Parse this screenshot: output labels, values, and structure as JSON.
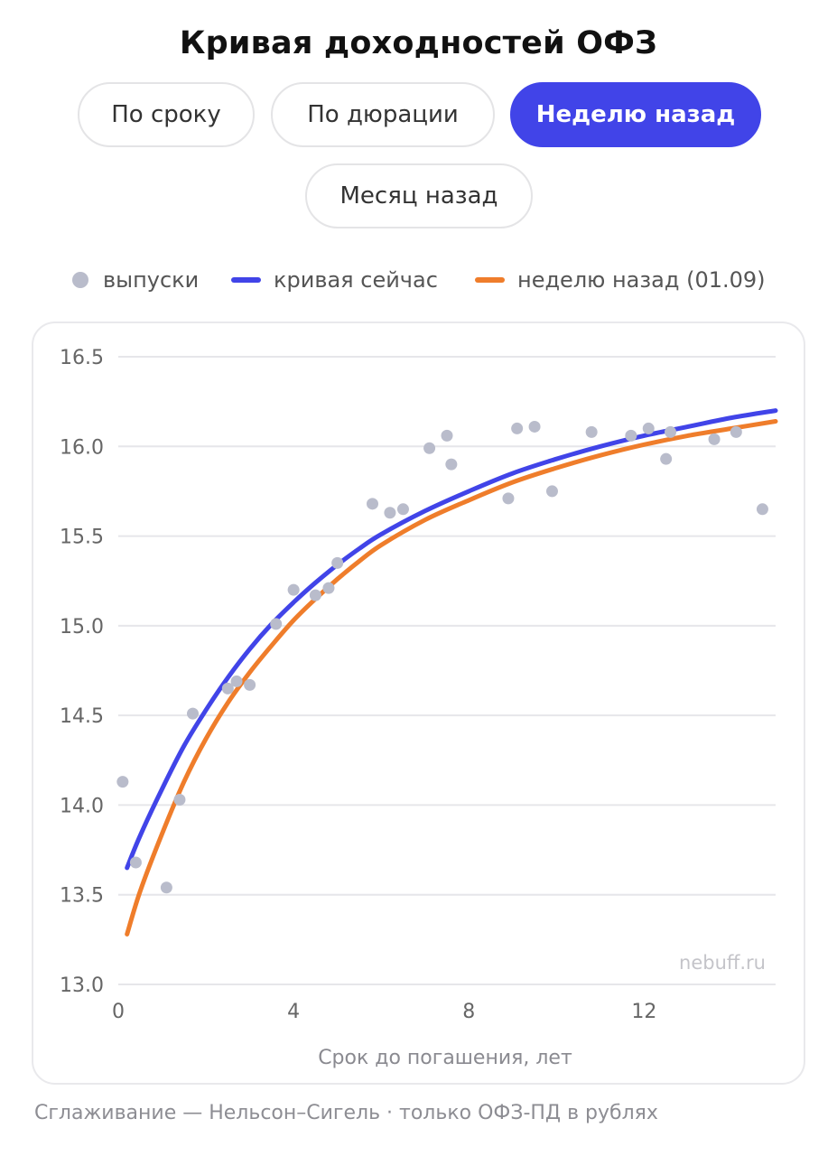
{
  "title": "Кривая доходностей ОФЗ",
  "tabs": [
    {
      "label": "По сроку",
      "active": false
    },
    {
      "label": "По дюрации",
      "active": false
    },
    {
      "label": "Неделю назад",
      "active": true
    },
    {
      "label": "Месяц назад",
      "active": false
    }
  ],
  "legend": {
    "issues": "выпуски",
    "current": "кривая сейчас",
    "week_ago": "неделю назад (01.09)"
  },
  "colors": {
    "accent": "#4144e8",
    "current_curve": "#4144e8",
    "week_ago_curve": "#ef7d2b",
    "points": "#b9bccb",
    "grid": "#e6e6ea"
  },
  "footnote": "Сглаживание — Нельсон–Сигель · только ОФЗ-ПД в рублях",
  "chart_data": {
    "type": "scatter",
    "xlabel": "Срок до погашения, лет",
    "ylabel": "",
    "xlim": [
      0,
      15
    ],
    "ylim": [
      13.0,
      16.5
    ],
    "xticks": [
      0,
      4,
      8,
      12
    ],
    "yticks": [
      13.0,
      13.5,
      14.0,
      14.5,
      15.0,
      15.5,
      16.0,
      16.5
    ],
    "grid": "horizontal",
    "watermark": "nebuff.ru",
    "series": [
      {
        "name": "выпуски",
        "kind": "points",
        "x": [
          0.1,
          0.4,
          1.1,
          1.4,
          1.7,
          2.5,
          2.7,
          3.0,
          3.6,
          4.0,
          4.5,
          4.8,
          5.0,
          5.8,
          6.2,
          6.5,
          7.1,
          7.5,
          7.6,
          8.9,
          9.1,
          9.5,
          9.9,
          10.8,
          11.7,
          12.1,
          12.5,
          12.6,
          13.6,
          14.1,
          14.7
        ],
        "y": [
          14.13,
          13.68,
          13.54,
          14.03,
          14.51,
          14.65,
          14.69,
          14.67,
          15.01,
          15.2,
          15.17,
          15.21,
          15.35,
          15.68,
          15.63,
          15.65,
          15.99,
          16.06,
          15.9,
          15.71,
          16.1,
          16.11,
          15.75,
          16.08,
          16.06,
          16.1,
          15.93,
          16.08,
          16.04,
          16.08,
          15.65
        ]
      },
      {
        "name": "кривая сейчас",
        "kind": "line",
        "x": [
          0.2,
          0.5,
          1,
          1.5,
          2,
          2.5,
          3,
          3.5,
          4,
          4.5,
          5,
          5.5,
          6,
          7,
          8,
          9,
          10,
          11,
          12,
          13,
          14,
          15
        ],
        "y": [
          13.65,
          13.83,
          14.09,
          14.33,
          14.53,
          14.71,
          14.87,
          15.01,
          15.13,
          15.24,
          15.34,
          15.43,
          15.51,
          15.64,
          15.75,
          15.85,
          15.93,
          16.0,
          16.06,
          16.11,
          16.16,
          16.2
        ]
      },
      {
        "name": "неделю назад (01.09)",
        "kind": "line",
        "x": [
          0.2,
          0.5,
          1,
          1.5,
          2,
          2.5,
          3,
          3.5,
          4,
          4.5,
          5,
          5.5,
          6,
          7,
          8,
          9,
          10,
          11,
          12,
          13,
          14,
          15
        ],
        "y": [
          13.28,
          13.52,
          13.84,
          14.13,
          14.37,
          14.57,
          14.74,
          14.89,
          15.03,
          15.15,
          15.26,
          15.36,
          15.45,
          15.59,
          15.7,
          15.8,
          15.88,
          15.95,
          16.01,
          16.06,
          16.1,
          16.14
        ]
      }
    ]
  }
}
